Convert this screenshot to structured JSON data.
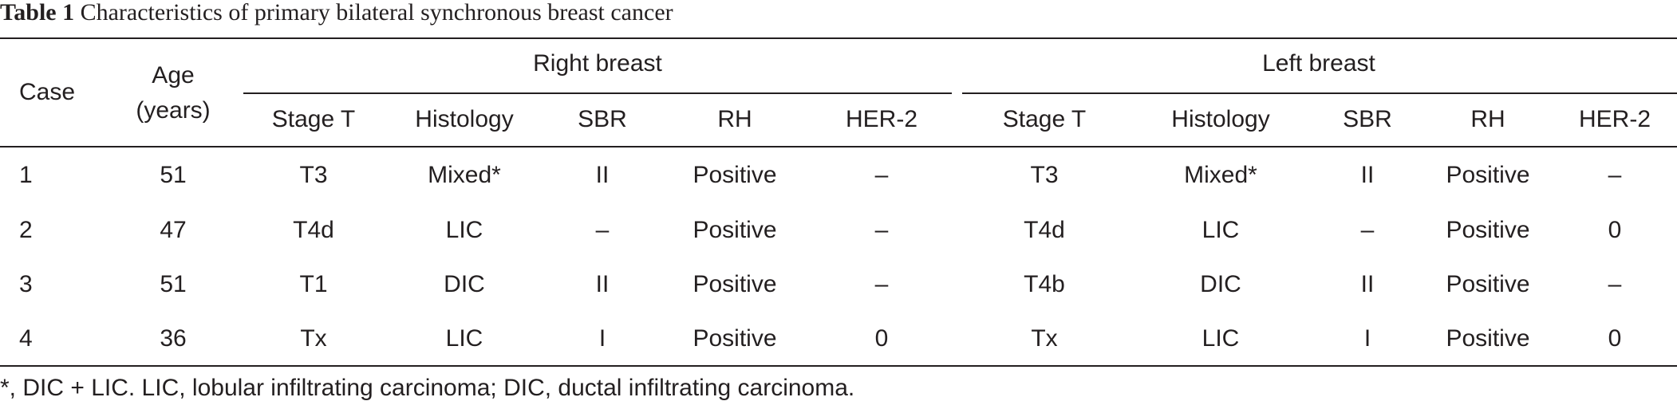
{
  "caption": {
    "label": "Table 1",
    "text": "Characteristics of primary bilateral synchronous breast cancer"
  },
  "header": {
    "case": "Case",
    "age_line1": "Age",
    "age_line2": "(years)",
    "right_breast": "Right breast",
    "left_breast": "Left breast",
    "sub": [
      "Stage T",
      "Histology",
      "SBR",
      "RH",
      "HER-2"
    ]
  },
  "rows": [
    {
      "case": "1",
      "age": "51",
      "right": {
        "stage": "T3",
        "histology": "Mixed*",
        "sbr": "II",
        "rh": "Positive",
        "her2": "–"
      },
      "left": {
        "stage": "T3",
        "histology": "Mixed*",
        "sbr": "II",
        "rh": "Positive",
        "her2": "–"
      }
    },
    {
      "case": "2",
      "age": "47",
      "right": {
        "stage": "T4d",
        "histology": "LIC",
        "sbr": "–",
        "rh": "Positive",
        "her2": "–"
      },
      "left": {
        "stage": "T4d",
        "histology": "LIC",
        "sbr": "–",
        "rh": "Positive",
        "her2": "0"
      }
    },
    {
      "case": "3",
      "age": "51",
      "right": {
        "stage": "T1",
        "histology": "DIC",
        "sbr": "II",
        "rh": "Positive",
        "her2": "–"
      },
      "left": {
        "stage": "T4b",
        "histology": "DIC",
        "sbr": "II",
        "rh": "Positive",
        "her2": "–"
      }
    },
    {
      "case": "4",
      "age": "36",
      "right": {
        "stage": "Tx",
        "histology": "LIC",
        "sbr": "I",
        "rh": "Positive",
        "her2": "0"
      },
      "left": {
        "stage": "Tx",
        "histology": "LIC",
        "sbr": "I",
        "rh": "Positive",
        "her2": "0"
      }
    }
  ],
  "footnote": "*, DIC + LIC. LIC, lobular infiltrating carcinoma; DIC, ductal infiltrating carcinoma."
}
